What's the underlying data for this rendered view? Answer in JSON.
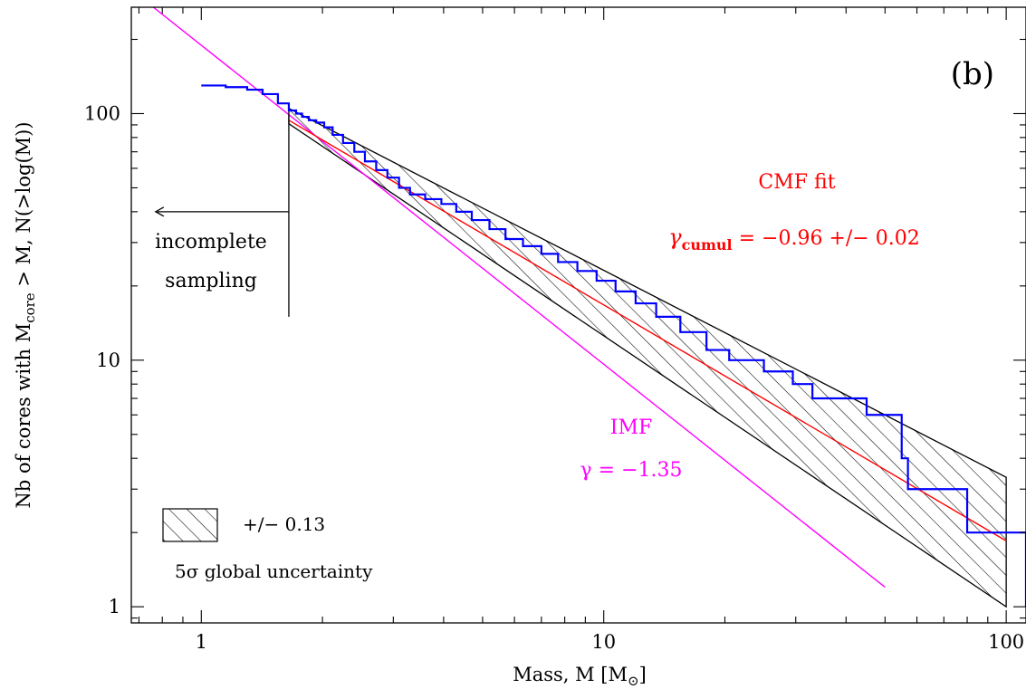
{
  "chart_data": {
    "type": "line",
    "panel_label": "(b)",
    "xlabel": "Mass, M [M",
    "xlabel_unit_symbol": "⊙",
    "xlabel_suffix": "]",
    "ylabel_prefix": "Nb of cores with M",
    "ylabel_sub": "core",
    "ylabel_suffix": " > M, N(>log(M))",
    "x_scale": "log",
    "y_scale": "log",
    "xlim": [
      0.67,
      112
    ],
    "ylim": [
      0.86,
      270
    ],
    "x_tick_labels": [
      {
        "value": 1,
        "label": "1"
      },
      {
        "value": 10,
        "label": "10"
      },
      {
        "value": 100,
        "label": "100"
      }
    ],
    "y_tick_labels": [
      {
        "value": 1,
        "label": "1"
      },
      {
        "value": 10,
        "label": "10"
      },
      {
        "value": 100,
        "label": "100"
      }
    ],
    "grid": false,
    "legend": "none",
    "colors": {
      "cumulative": "#0000ff",
      "cmf_fit": "#ff0000",
      "imf": "#ff00ff",
      "axes": "#000000"
    },
    "series": [
      {
        "kind": "step",
        "color": "#0000ff",
        "x": [
          1.0,
          1.15,
          1.3,
          1.42,
          1.55,
          1.65,
          1.72,
          1.78,
          1.85,
          1.93,
          2.02,
          2.12,
          2.25,
          2.4,
          2.55,
          2.72,
          2.9,
          3.1,
          3.3,
          3.6,
          3.95,
          4.3,
          4.7,
          5.2,
          5.7,
          6.3,
          7.0,
          7.7,
          8.6,
          9.6,
          10.7,
          12.0,
          13.5,
          15.5,
          18.0,
          20.5,
          25.0,
          29.5,
          33.0,
          45.0,
          55.0,
          57.0,
          80.0,
          112.0
        ],
        "y": [
          130,
          128,
          125,
          120,
          110,
          103,
          100,
          97,
          94,
          92,
          88,
          82,
          76,
          70,
          64,
          59,
          55,
          50,
          47,
          45,
          43,
          40,
          37,
          34,
          31,
          29,
          27,
          25,
          23,
          21,
          19,
          17,
          15,
          13,
          11,
          10,
          9,
          8,
          7,
          6,
          4,
          3,
          2,
          1
        ]
      },
      {
        "name": "CMF fit",
        "kind": "line",
        "color": "#ff0000",
        "x": [
          1.65,
          100
        ],
        "y": [
          94,
          1.85
        ]
      },
      {
        "name": "IMF",
        "kind": "line",
        "color": "#ff00ff",
        "x": [
          0.76,
          50
        ],
        "y": [
          270,
          1.2
        ]
      }
    ],
    "uncertainty_band": {
      "upper": {
        "x": [
          1.65,
          100
        ],
        "y": [
          105,
          3.35
        ]
      },
      "lower": {
        "x": [
          1.65,
          100
        ],
        "y": [
          91,
          1.0
        ]
      },
      "fill": "hatched"
    },
    "completeness_marker": {
      "x": 1.65,
      "y_top": 100,
      "y_bottom": 15,
      "arrow_y": 40,
      "arrow_to_x": 0.77
    },
    "annotations": {
      "incomplete_1": "incomplete",
      "incomplete_2": "sampling",
      "cmf_title": "CMF fit",
      "cmf_gamma_symbol": "γ",
      "cmf_gamma_sub": "cumul",
      "cmf_gamma_value": " = −0.96 +/− 0.02",
      "imf_title": "IMF",
      "imf_gamma": "γ = −1.35",
      "legend_value": "+/− 0.13",
      "legend_caption": "5σ global uncertainty"
    }
  }
}
